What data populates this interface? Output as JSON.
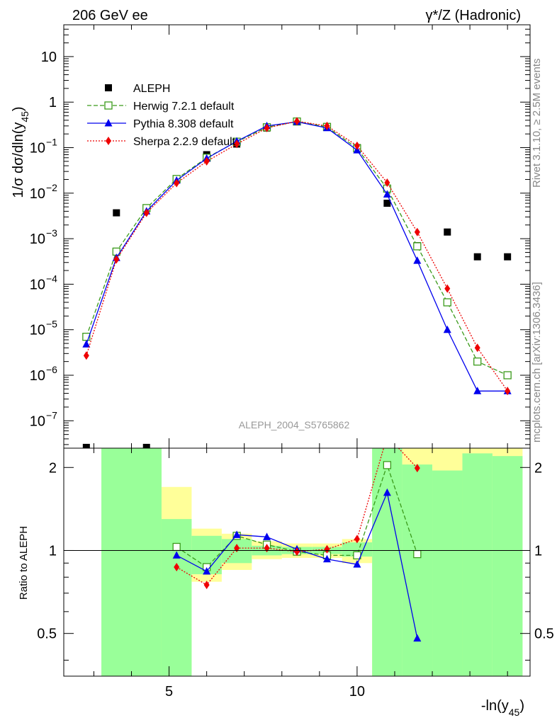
{
  "header": {
    "left_label": "206 GeV ee",
    "right_label": "γ*/Z (Hadronic)"
  },
  "side_labels": {
    "rivet": "Rivet 3.1.10, ≥ 2.5M events",
    "mcplots": "mcplots.cern.ch [arXiv:1306.3436]"
  },
  "watermark": "ALEPH_2004_S5765862",
  "colors": {
    "aleph": "#000000",
    "herwig": "#3a9a1a",
    "pythia": "#0000ee",
    "sherpa": "#ee0000",
    "band_green": "#99ff99",
    "band_yellow": "#ffff99"
  },
  "chart_data": [
    {
      "type": "scatter",
      "title": "",
      "ylabel": "1/σ dσ/dln(y45)",
      "xlabel": "",
      "yscale": "log",
      "xlim": [
        2.2,
        14.6
      ],
      "ylim": [
        2.5e-08,
        50
      ],
      "y_ticks": [
        {
          "value": 10.0,
          "base": "10",
          "exp": ""
        },
        {
          "value": 1,
          "base": "1",
          "exp": ""
        },
        {
          "value": 0.1,
          "base": "10",
          "exp": "−1"
        },
        {
          "value": 0.01,
          "base": "10",
          "exp": "−2"
        },
        {
          "value": 0.001,
          "base": "10",
          "exp": "−3"
        },
        {
          "value": 0.0001,
          "base": "10",
          "exp": "−4"
        },
        {
          "value": 1e-05,
          "base": "10",
          "exp": "−5"
        },
        {
          "value": 1e-06,
          "base": "10",
          "exp": "−6"
        },
        {
          "value": 1e-07,
          "base": "10",
          "exp": "−7"
        }
      ],
      "legend_position": "top-left",
      "series": [
        {
          "name": "ALEPH",
          "style": "black-square",
          "x": [
            2.8,
            3.6,
            4.4,
            5.2,
            6.0,
            6.8,
            7.6,
            8.4,
            9.2,
            10.0,
            10.8,
            11.6,
            12.4,
            13.2,
            14.0
          ],
          "y": [
            2.6e-08,
            0.0037,
            2.6e-08,
            0.02,
            0.07,
            0.12,
            0.27,
            0.37,
            0.29,
            0.1,
            0.006,
            0.0007,
            0.0014,
            0.0004,
            0.0004
          ]
        },
        {
          "name": "Herwig 7.2.1 default",
          "style": "green-open-square-dashed",
          "x": [
            2.8,
            3.6,
            4.4,
            5.2,
            6.0,
            6.8,
            7.6,
            8.4,
            9.2,
            10.0,
            10.8,
            11.6,
            12.4,
            13.2,
            14.0
          ],
          "y": [
            7e-06,
            0.00052,
            0.0047,
            0.0205,
            0.06,
            0.135,
            0.28,
            0.375,
            0.285,
            0.097,
            0.0126,
            0.00068,
            4e-05,
            2e-06,
            1e-06
          ]
        },
        {
          "name": "Pythia 8.308 default",
          "style": "blue-triangle-solid",
          "x": [
            2.8,
            3.6,
            4.4,
            5.2,
            6.0,
            6.8,
            7.6,
            8.4,
            9.2,
            10.0,
            10.8,
            11.6,
            12.4,
            13.2,
            14.0
          ],
          "y": [
            4.8e-06,
            0.00038,
            0.004,
            0.019,
            0.058,
            0.138,
            0.3,
            0.37,
            0.27,
            0.088,
            0.0094,
            0.00033,
            1e-05,
            4.5e-07,
            4.5e-07
          ]
        },
        {
          "name": "Sherpa 2.2.9 default",
          "style": "red-diamond-dotted",
          "x": [
            2.8,
            3.6,
            4.4,
            5.2,
            6.0,
            6.8,
            7.6,
            8.4,
            9.2,
            10.0,
            10.8,
            11.6,
            12.4,
            13.2,
            14.0
          ],
          "y": [
            2.7e-06,
            0.00035,
            0.0037,
            0.0166,
            0.05,
            0.12,
            0.27,
            0.38,
            0.3,
            0.11,
            0.017,
            0.0014,
            8e-05,
            4e-06,
            4.5e-07
          ]
        }
      ]
    },
    {
      "type": "line",
      "title": "",
      "ylabel": "Ratio to ALEPH",
      "xlabel": "-ln(y45)",
      "xlim": [
        2.2,
        14.6
      ],
      "ylim": [
        0.35,
        2.35
      ],
      "x_ticks": [
        5,
        10
      ],
      "y_ticks": [
        0.5,
        1,
        2
      ],
      "reference_line": 1,
      "band_edges": [
        3.2,
        4.8,
        5.6,
        6.4,
        7.2,
        8.0,
        8.8,
        9.6,
        10.4,
        11.2,
        12.0,
        12.8,
        13.6,
        14.4
      ],
      "band_green": [
        [
          0.35,
          2.35
        ],
        [
          0.35,
          2.35
        ],
        [
          0.35,
          2.35
        ],
        [
          0.35,
          2.35
        ],
        [
          0.35,
          2.35
        ],
        [
          0.35,
          2.35
        ],
        [
          0.35,
          2.35
        ],
        [
          0.35,
          2.35
        ],
        [
          0.35,
          2.35
        ],
        [
          0.35,
          2.35
        ],
        [
          0.35,
          2.35
        ],
        [
          0.35,
          2.35
        ],
        [
          0.35,
          2.35
        ]
      ],
      "band_yellow": [
        [
          0.35,
          2.35
        ],
        [
          0.35,
          2.35
        ],
        [
          0.35,
          2.35
        ],
        [
          0.35,
          2.35
        ],
        [
          0.35,
          2.35
        ],
        [
          0.35,
          2.35
        ],
        [
          0.35,
          2.35
        ],
        [
          0.35,
          2.35
        ],
        [
          0.35,
          2.35
        ],
        [
          0.35,
          2.35
        ],
        [
          0.35,
          2.35
        ],
        [
          0.35,
          2.35
        ],
        [
          0.35,
          2.35
        ]
      ],
      "bands": [
        {
          "x0": 3.2,
          "x1": 4.8,
          "green": [
            0.35,
            2.35
          ],
          "yellow": [
            0.35,
            2.35
          ]
        },
        {
          "x0": 4.8,
          "x1": 5.6,
          "green": [
            0.35,
            1.3
          ],
          "yellow": [
            0.35,
            1.7
          ]
        },
        {
          "x0": 5.6,
          "x1": 6.4,
          "green": [
            0.82,
            1.13
          ],
          "yellow": [
            0.77,
            1.2
          ]
        },
        {
          "x0": 6.4,
          "x1": 7.2,
          "green": [
            0.9,
            1.1
          ],
          "yellow": [
            0.85,
            1.15
          ]
        },
        {
          "x0": 7.2,
          "x1": 8.0,
          "green": [
            0.96,
            1.04
          ],
          "yellow": [
            0.93,
            1.08
          ]
        },
        {
          "x0": 8.0,
          "x1": 8.8,
          "green": [
            0.97,
            1.03
          ],
          "yellow": [
            0.94,
            1.06
          ]
        },
        {
          "x0": 8.8,
          "x1": 9.6,
          "green": [
            0.97,
            1.03
          ],
          "yellow": [
            0.94,
            1.06
          ]
        },
        {
          "x0": 9.6,
          "x1": 10.4,
          "green": [
            0.95,
            1.07
          ],
          "yellow": [
            0.9,
            1.1
          ]
        },
        {
          "x0": 10.4,
          "x1": 11.2,
          "green": [
            0.35,
            2.35
          ],
          "yellow": [
            0.35,
            2.35
          ]
        },
        {
          "x0": 11.2,
          "x1": 12.0,
          "green": [
            0.35,
            2.05
          ],
          "yellow": [
            0.35,
            2.35
          ]
        },
        {
          "x0": 12.0,
          "x1": 12.8,
          "green": [
            0.35,
            1.95
          ],
          "yellow": [
            0.35,
            2.35
          ]
        },
        {
          "x0": 12.8,
          "x1": 13.6,
          "green": [
            0.35,
            2.25
          ],
          "yellow": [
            0.35,
            2.35
          ]
        },
        {
          "x0": 13.6,
          "x1": 14.4,
          "green": [
            0.35,
            2.2
          ],
          "yellow": [
            0.35,
            2.35
          ]
        }
      ],
      "series": [
        {
          "name": "Herwig 7.2.1 default",
          "x": [
            5.2,
            6.0,
            6.8,
            7.6,
            8.4,
            9.2,
            10.0,
            10.8,
            11.6
          ],
          "y": [
            1.03,
            0.87,
            1.13,
            1.05,
            0.99,
            0.96,
            0.96,
            2.04,
            0.97
          ]
        },
        {
          "name": "Pythia 8.308 default",
          "x": [
            5.2,
            6.0,
            6.8,
            7.6,
            8.4,
            9.2,
            10.0,
            10.8,
            11.6
          ],
          "y": [
            0.96,
            0.84,
            1.14,
            1.12,
            1.01,
            0.93,
            0.89,
            1.62,
            0.48
          ]
        },
        {
          "name": "Sherpa 2.2.9 default",
          "x": [
            5.2,
            6.0,
            6.8,
            7.6,
            8.4,
            9.2,
            10.0,
            10.8,
            11.6
          ],
          "y": [
            0.87,
            0.75,
            1.02,
            1.02,
            0.99,
            1.01,
            1.1,
            2.6,
            1.99
          ]
        }
      ]
    }
  ]
}
